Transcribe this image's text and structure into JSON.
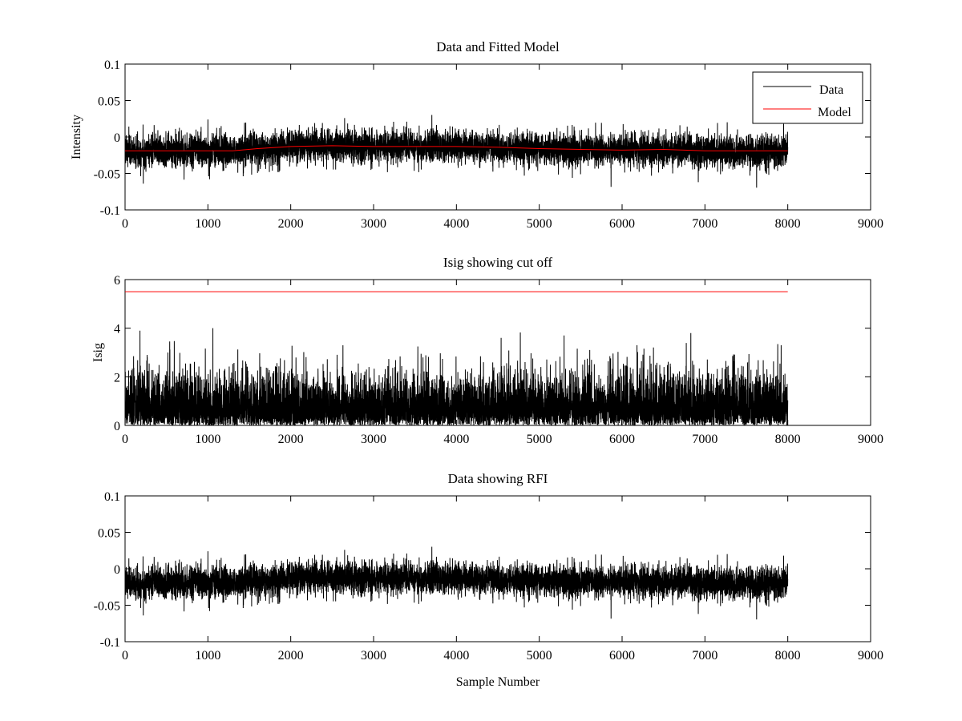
{
  "colors": {
    "data": "#000000",
    "model": "#ff0000",
    "background": "#ffffff",
    "axes": "#000000"
  },
  "chart_data": [
    {
      "type": "line",
      "title": "Data and Fitted Model",
      "xlabel": "",
      "ylabel": "Intensity",
      "xlim": [
        0,
        9000
      ],
      "ylim": [
        -0.1,
        0.1
      ],
      "xticks": [
        0,
        1000,
        2000,
        3000,
        4000,
        5000,
        6000,
        7000,
        8000,
        9000
      ],
      "yticks": [
        -0.1,
        -0.05,
        0,
        0.05,
        0.1
      ],
      "ytick_labels": [
        "-0.1",
        "-0.05",
        "0",
        "0.05",
        "0.1"
      ],
      "legend": {
        "position": "top-right",
        "entries": [
          "Data",
          "Model"
        ]
      },
      "series": [
        {
          "name": "Data",
          "color": "#000000",
          "noise": {
            "n": 8000,
            "x_end": 8000,
            "sd": 0.011,
            "seed": 7
          },
          "baseline": {
            "x": [
              0,
              1000,
              1300,
              1600,
              2000,
              2500,
              3000,
              3500,
              4000,
              4500,
              5000,
              5500,
              6000,
              6500,
              7000,
              7500,
              8000
            ],
            "y": [
              -0.019,
              -0.019,
              -0.019,
              -0.016,
              -0.013,
              -0.012,
              -0.013,
              -0.013,
              -0.013,
              -0.014,
              -0.016,
              -0.017,
              -0.018,
              -0.017,
              -0.019,
              -0.019,
              -0.019
            ]
          },
          "spikes": [
            [
              1000,
              0.024
            ],
            [
              2650,
              0.026
            ],
            [
              7950,
              0.018
            ],
            [
              220,
              -0.064
            ],
            [
              5400,
              -0.056
            ],
            [
              6920,
              -0.062
            ],
            [
              3400,
              0.021
            ],
            [
              1020,
              -0.058
            ]
          ]
        },
        {
          "name": "Model",
          "color": "#ff0000",
          "x": [
            0,
            1000,
            1300,
            1600,
            2000,
            2500,
            3000,
            3500,
            4000,
            4500,
            5000,
            5500,
            6000,
            6500,
            7000,
            7500,
            8000
          ],
          "y": [
            -0.019,
            -0.019,
            -0.019,
            -0.016,
            -0.013,
            -0.012,
            -0.013,
            -0.013,
            -0.013,
            -0.014,
            -0.016,
            -0.017,
            -0.018,
            -0.017,
            -0.019,
            -0.019,
            -0.019
          ]
        }
      ]
    },
    {
      "type": "line",
      "title": "Isig showing cut off",
      "xlabel": "",
      "ylabel": "Isig",
      "xlim": [
        0,
        9000
      ],
      "ylim": [
        0,
        6
      ],
      "xticks": [
        0,
        1000,
        2000,
        3000,
        4000,
        5000,
        6000,
        7000,
        8000,
        9000
      ],
      "yticks": [
        0,
        2,
        4,
        6
      ],
      "ytick_labels": [
        "0",
        "2",
        "4",
        "6"
      ],
      "series": [
        {
          "color": "#000000",
          "abs_noise": {
            "n": 8000,
            "x_end": 8000,
            "sd": 1.0,
            "seed": 11
          },
          "spikes": [
            [
              180,
              3.9
            ],
            [
              1060,
              4.0
            ],
            [
              4540,
              3.6
            ],
            [
              5300,
              3.7
            ],
            [
              6830,
              3.8
            ],
            [
              7920,
              3.3
            ]
          ]
        },
        {
          "color": "#ff0000",
          "x": [
            0,
            8000
          ],
          "y": [
            5.5,
            5.5
          ]
        }
      ]
    },
    {
      "type": "line",
      "title": "Data showing RFI",
      "xlabel": "Sample Number",
      "ylabel": "",
      "xlim": [
        0,
        9000
      ],
      "ylim": [
        -0.1,
        0.1
      ],
      "xticks": [
        0,
        1000,
        2000,
        3000,
        4000,
        5000,
        6000,
        7000,
        8000,
        9000
      ],
      "yticks": [
        -0.1,
        -0.05,
        0,
        0.05,
        0.1
      ],
      "ytick_labels": [
        "-0.1",
        "-0.05",
        "0",
        "0.05",
        "0.1"
      ],
      "series": [
        {
          "color": "#000000",
          "noise": {
            "n": 8000,
            "x_end": 8000,
            "sd": 0.011,
            "seed": 7
          },
          "baseline": {
            "x": [
              0,
              1000,
              1300,
              1600,
              2000,
              2500,
              3000,
              3500,
              4000,
              4500,
              5000,
              5500,
              6000,
              6500,
              7000,
              7500,
              8000
            ],
            "y": [
              -0.019,
              -0.019,
              -0.019,
              -0.016,
              -0.013,
              -0.012,
              -0.013,
              -0.013,
              -0.013,
              -0.014,
              -0.016,
              -0.017,
              -0.018,
              -0.017,
              -0.019,
              -0.019,
              -0.019
            ]
          },
          "spikes": [
            [
              1000,
              0.024
            ],
            [
              2650,
              0.026
            ],
            [
              7950,
              0.018
            ],
            [
              220,
              -0.064
            ],
            [
              5400,
              -0.056
            ],
            [
              6920,
              -0.062
            ],
            [
              3400,
              0.021
            ],
            [
              1020,
              -0.058
            ]
          ]
        }
      ]
    }
  ]
}
